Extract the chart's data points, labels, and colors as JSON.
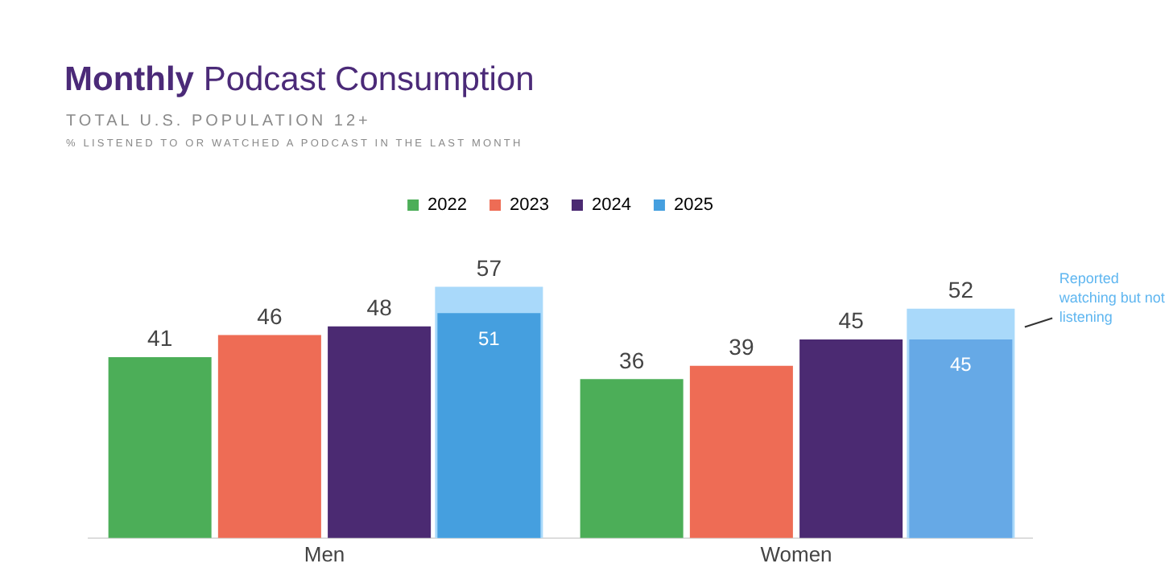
{
  "chart_data": {
    "type": "bar",
    "title": "Monthly Podcast Consumption",
    "subtitle": "TOTAL U.S. POPULATION 12+",
    "categories": [
      "Men",
      "Women"
    ],
    "legend": "top",
    "grid": false,
    "tick_labels": "x",
    "series": [
      {
        "name": "2022",
        "color": "#4cae58",
        "values": [
          41,
          36
        ],
        "value_labels": [
          "41",
          "36"
        ]
      },
      {
        "name": "2023",
        "color": "#ee6c55",
        "values": [
          46,
          39
        ],
        "value_labels": [
          "46",
          "39"
        ]
      },
      {
        "name": "2024",
        "color": "#4b2a72",
        "values": [
          48,
          45
        ],
        "value_labels": [
          "48",
          "45"
        ]
      },
      {
        "name": "2025",
        "color": "#459fdf",
        "colors": [
          "#459fdf",
          "#66a9e6"
        ],
        "values": [
          51,
          45
        ],
        "value_labels": [
          "51",
          "45"
        ]
      },
      {
        "color": "#a9d9fa",
        "values": [
          57,
          52
        ],
        "value_labels": [
          "57",
          "52"
        ]
      }
    ],
    "annotations": [
      "% LISTENED TO OR WATCHED A PODCAST IN THE LAST MONTH",
      "Reported watching but not listening"
    ]
  }
}
